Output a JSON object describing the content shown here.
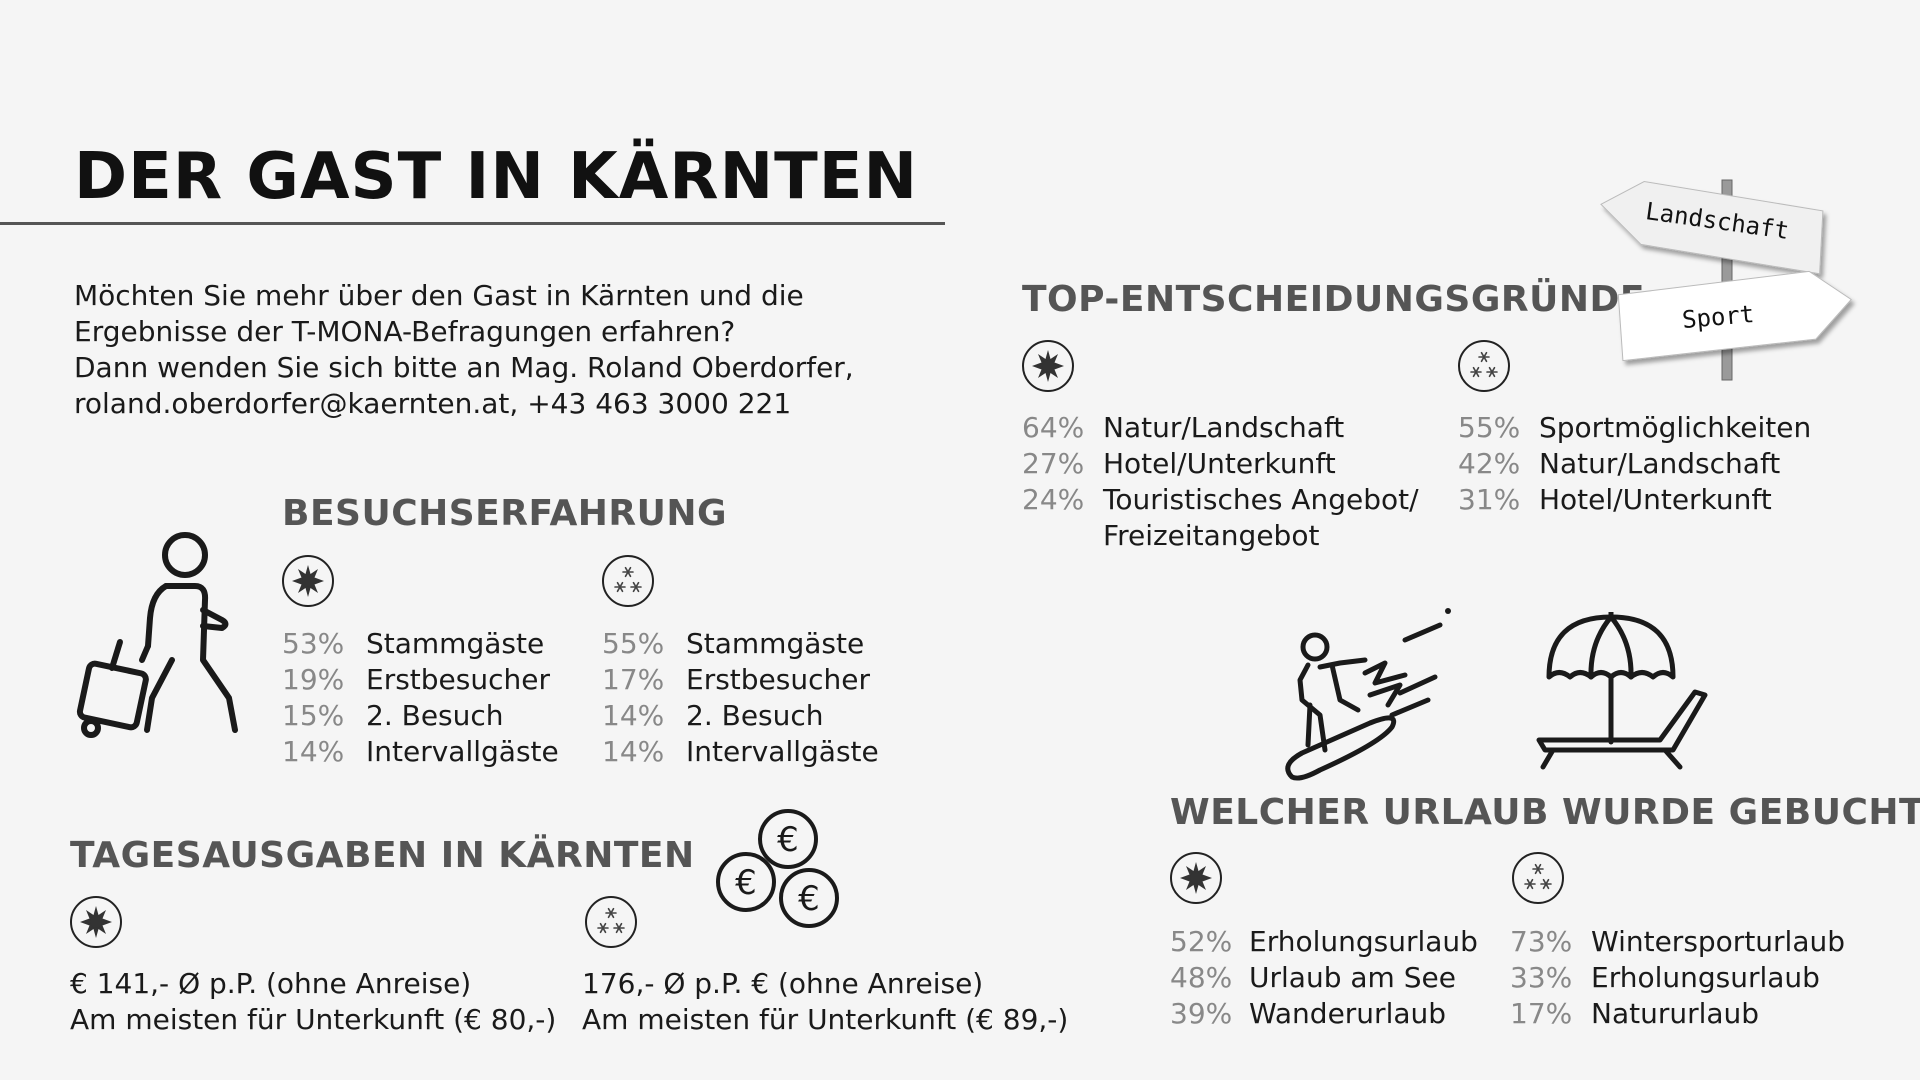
{
  "title": "DER GAST IN KÄRNTEN",
  "intro": [
    "Möchten Sie mehr über den Gast in Kärnten und die",
    "Ergebnisse der T-MONA-Befragungen erfahren?",
    "Dann wenden Sie sich bitte an Mag. Roland Oberdorfer,",
    "roland.oberdorfer@kaernten.at, +43 463 3000 221"
  ],
  "besuchserfahrung": {
    "heading": "BESUCHSERFAHRUNG",
    "summer": [
      {
        "pct": "53%",
        "label": "Stammgäste"
      },
      {
        "pct": "19%",
        "label": "Erstbesucher"
      },
      {
        "pct": "15%",
        "label": "2. Besuch"
      },
      {
        "pct": "14%",
        "label": "Intervallgäste"
      }
    ],
    "winter": [
      {
        "pct": "55%",
        "label": "Stammgäste"
      },
      {
        "pct": "17%",
        "label": "Erstbesucher"
      },
      {
        "pct": "14%",
        "label": "2. Besuch"
      },
      {
        "pct": "14%",
        "label": "Intervallgäste"
      }
    ]
  },
  "tagesausgaben": {
    "heading": "TAGESAUSGABEN IN KÄRNTEN",
    "summer": [
      "€ 141,- Ø p.P. (ohne Anreise)",
      "Am meisten für Unterkunft (€ 80,-)"
    ],
    "winter": [
      "176,- Ø p.P. € (ohne Anreise)",
      "Am meisten für Unterkunft (€ 89,-)"
    ]
  },
  "entscheidung": {
    "heading": "TOP-ENTSCHEIDUNGSGRÜNDE",
    "summer": [
      {
        "pct": "64%",
        "label": "Natur/Landschaft"
      },
      {
        "pct": "27%",
        "label": "Hotel/Unterkunft"
      },
      {
        "pct": "24%",
        "label": "Touristisches Angebot/"
      },
      {
        "pct": "",
        "label": "Freizeitangebot"
      }
    ],
    "winter": [
      {
        "pct": "55%",
        "label": "Sportmöglichkeiten"
      },
      {
        "pct": "42%",
        "label": "Natur/Landschaft"
      },
      {
        "pct": "31%",
        "label": "Hotel/Unterkunft"
      }
    ]
  },
  "signpost": {
    "sign1": "Landschaft",
    "sign2": "Sport"
  },
  "urlaub": {
    "heading": "WELCHER URLAUB WURDE GEBUCHT",
    "summer": [
      {
        "pct": "52%",
        "label": "Erholungsurlaub"
      },
      {
        "pct": "48%",
        "label": "Urlaub am See"
      },
      {
        "pct": "39%",
        "label": "Wanderurlaub"
      }
    ],
    "winter": [
      {
        "pct": "73%",
        "label": "Wintersporturlaub"
      },
      {
        "pct": "33%",
        "label": "Erholungsurlaub"
      },
      {
        "pct": "17%",
        "label": "Natururlaub"
      }
    ]
  },
  "icons": {
    "summer": "sun-icon",
    "winter": "snowflake-icon",
    "traveler": "traveler-with-suitcase-icon",
    "coins": "euro-coins-icon",
    "snowboard": "snowboarder-icon",
    "beach": "beach-umbrella-lounger-icon",
    "signpost": "signpost-icon"
  }
}
